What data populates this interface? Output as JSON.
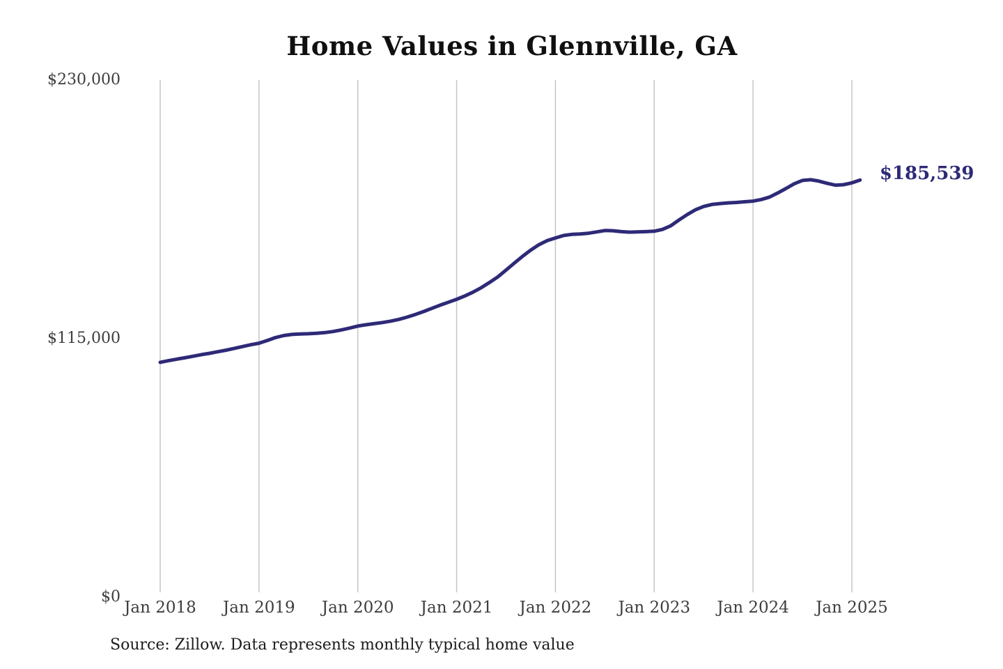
{
  "title": "Home Values in Glennville, GA",
  "source_note": "Source: Zillow. Data represents monthly typical home value",
  "annotation": {
    "label": "$185,539"
  },
  "colors": {
    "line": "#2e2a77",
    "annotation": "#2e2a77",
    "grid": "#c6c6c6",
    "title": "#101010",
    "tick": "#3d3d3d",
    "background": "#ffffff"
  },
  "chart_data": {
    "type": "line",
    "title": "Home Values in Glennville, GA",
    "xlabel": "",
    "ylabel": "",
    "grid": "vertical-only",
    "legend": "none",
    "ylim": [
      0,
      230000
    ],
    "y_ticks": [
      {
        "label": "$0",
        "value": 0
      },
      {
        "label": "$115,000",
        "value": 115000
      },
      {
        "label": "$230,000",
        "value": 230000
      }
    ],
    "x_ticks": [
      "Jan 2018",
      "Jan 2019",
      "Jan 2020",
      "Jan 2021",
      "Jan 2022",
      "Jan 2023",
      "Jan 2024",
      "Jan 2025"
    ],
    "series": [
      {
        "name": "Monthly typical home value",
        "start_month": "2018-01",
        "end_month": "2025-02",
        "frequency": "monthly",
        "final_value": 185539,
        "values": [
          104500,
          105200,
          105900,
          106500,
          107200,
          107900,
          108500,
          109200,
          109900,
          110700,
          111500,
          112300,
          113000,
          114200,
          115500,
          116400,
          116900,
          117100,
          117200,
          117400,
          117700,
          118200,
          118900,
          119700,
          120600,
          121200,
          121700,
          122200,
          122800,
          123600,
          124600,
          125800,
          127100,
          128500,
          129900,
          131200,
          132500,
          134000,
          135700,
          137700,
          140000,
          142500,
          145500,
          148600,
          151600,
          154400,
          156800,
          158600,
          159800,
          160900,
          161400,
          161600,
          161900,
          162500,
          163100,
          163000,
          162600,
          162400,
          162500,
          162600,
          162800,
          163600,
          165200,
          167800,
          170200,
          172300,
          173800,
          174700,
          175100,
          175400,
          175600,
          175900,
          176200,
          176900,
          178000,
          179800,
          181800,
          183900,
          185400,
          185700,
          185100,
          184100,
          183300,
          183500,
          184300,
          185539
        ]
      }
    ]
  }
}
